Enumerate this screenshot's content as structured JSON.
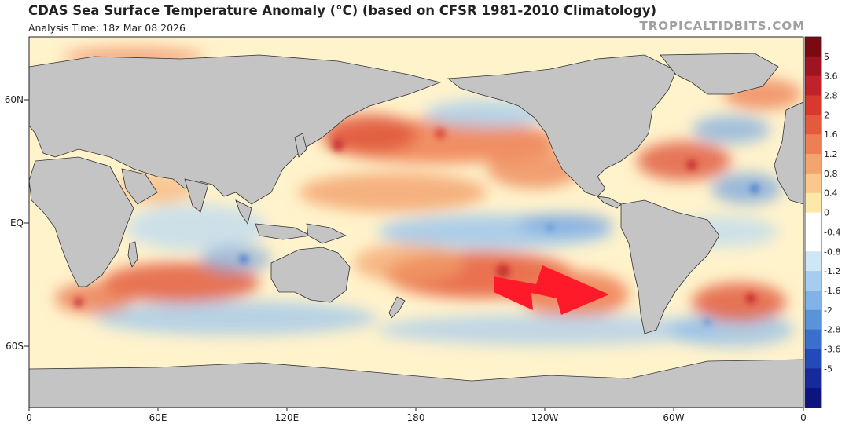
{
  "title": "CDAS Sea Surface Temperature Anomaly (°C) (based on CFSR 1981-2010 Climatology)",
  "subtitle": "Analysis Time: 18z Mar 08 2026",
  "credit": "TROPICALTIDBITS.COM",
  "lat_labels": [
    "60N",
    "EQ",
    "60S"
  ],
  "lon_labels": [
    "0",
    "60E",
    "120E",
    "180",
    "120W",
    "60W",
    "0"
  ],
  "colorbar": {
    "labels": [
      "5",
      "3.6",
      "2.8",
      "2",
      "1.6",
      "1.2",
      "0.8",
      "0.4",
      "0",
      "-0.4",
      "-0.8",
      "-1.2",
      "-1.6",
      "-2",
      "-2.8",
      "-3.6",
      "-5"
    ],
    "colors": [
      "#7a0a12",
      "#9e1420",
      "#c0222b",
      "#d8392f",
      "#e55a3f",
      "#ee7f55",
      "#f4a46f",
      "#f9c88a",
      "#fde8a8",
      "#ffffff",
      "#ffffff",
      "#cfe6f5",
      "#a7cdee",
      "#82b3e6",
      "#5b93d9",
      "#3a6fcc",
      "#2449b8",
      "#162a9c",
      "#0c1480"
    ]
  },
  "colors": {
    "land": "#c4c4c4",
    "ocean_neutral": "#fff4cf",
    "warm": "#ee7c52",
    "warm_strong": "#d83a2e",
    "cool": "#b9d9f2",
    "cool_strong": "#5c8fd8",
    "arrow": "#ff1a2a"
  },
  "annotations": [
    {
      "type": "arrow",
      "description_icon": "red-arrow-icon",
      "color": "#ff1a2a"
    }
  ]
}
